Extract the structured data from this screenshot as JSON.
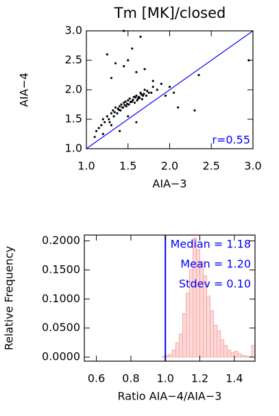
{
  "chart_data": [
    {
      "type": "scatter",
      "title": "Tm [MK]/closed",
      "x_label": "AIA−3",
      "y_label": "AIA−4",
      "annotation": "r=0.55",
      "annotation_color": "#0000ff",
      "identity_line": true,
      "identity_color": "#0000ff",
      "color": "#000000",
      "xlim": [
        1,
        3
      ],
      "ylim": [
        1,
        3
      ],
      "xticks": [
        {
          "value": 1,
          "label": "1.0"
        },
        1.5,
        {
          "value": 2,
          "label": "2.0"
        },
        2.5,
        {
          "value": 3,
          "label": "3.0"
        }
      ],
      "yticks": [
        {
          "value": 1,
          "label": "1.0"
        },
        1.5,
        {
          "value": 2,
          "label": "2.0"
        },
        2.5,
        {
          "value": 3,
          "label": "3.0"
        }
      ],
      "x": [
        1.2,
        1.25,
        1.3,
        1.32,
        1.35,
        1.38,
        1.4,
        1.42,
        1.45,
        1.47,
        1.5,
        1.52,
        1.55,
        1.57,
        1.6,
        1.62,
        1.65,
        1.68,
        1.7,
        1.75,
        1.8,
        1.85,
        1.28,
        1.33,
        1.37,
        1.41,
        1.44,
        1.48,
        1.51,
        1.54,
        1.58,
        1.61,
        1.64,
        1.67,
        1.72,
        1.78,
        1.15,
        1.18,
        1.22,
        1.27,
        1.34,
        1.39,
        1.43,
        1.46,
        1.49,
        1.53,
        1.56,
        1.59,
        1.63,
        1.66,
        1.69,
        1.73,
        1.9,
        1.95,
        2.0,
        2.05,
        1.1,
        1.12,
        1.3,
        1.45,
        1.5,
        1.6,
        1.25,
        1.35,
        1.55,
        1.7,
        2.1,
        2.3,
        2.35,
        2.95,
        1.4,
        1.6,
        1.2,
        1.3,
        1.5,
        1.8,
        1.65,
        1.45
      ],
      "values": [
        1.5,
        1.55,
        1.6,
        1.65,
        1.7,
        1.68,
        1.72,
        1.75,
        1.78,
        1.8,
        1.82,
        1.85,
        1.8,
        1.88,
        1.9,
        1.85,
        1.95,
        1.9,
        2.0,
        1.95,
        2.05,
        2.0,
        1.45,
        1.55,
        1.6,
        1.65,
        1.7,
        1.72,
        1.75,
        1.8,
        1.78,
        1.82,
        1.86,
        1.84,
        1.9,
        1.95,
        1.35,
        1.4,
        1.45,
        1.5,
        1.62,
        1.66,
        1.7,
        1.74,
        1.76,
        1.79,
        1.83,
        1.87,
        1.88,
        1.92,
        1.93,
        1.98,
        2.1,
        1.9,
        2.05,
        1.95,
        1.2,
        1.3,
        2.2,
        2.4,
        2.5,
        2.3,
        2.6,
        2.45,
        2.7,
        2.35,
        1.7,
        1.65,
        2.25,
        2.5,
        1.3,
        1.45,
        1.25,
        1.4,
        1.55,
        2.15,
        2.9,
        3.0
      ]
    },
    {
      "type": "histogram",
      "x_label": "Ratio AIA−4/AIA−3",
      "y_label": "Relative Frequency",
      "color": "#ffd8d8",
      "edge_color": "#f0a0a0",
      "annotations": [
        "Median = 1.18",
        "Mean = 1.20",
        "Stdev = 0.10"
      ],
      "annotation_color": "#0000ff",
      "vline": 1,
      "vline_color": "#0000ff",
      "xlim": [
        0.53,
        1.52
      ],
      "ylim": [
        -0.007,
        0.21
      ],
      "xticks": [
        0.6,
        0.8,
        {
          "value": 1,
          "label": "1.0"
        },
        1.2,
        1.4
      ],
      "yticks": [
        {
          "value": 0,
          "label": "0.0000"
        },
        {
          "value": 0.05,
          "label": "0.0500"
        },
        {
          "value": 0.1,
          "label": "0.1000"
        },
        {
          "value": 0.15,
          "label": "0.1500"
        },
        {
          "value": 0.2,
          "label": "0.2000"
        }
      ],
      "bins": [
        0.98,
        1.0,
        1.02,
        1.04,
        1.06,
        1.08,
        1.1,
        1.12,
        1.14,
        1.16,
        1.18,
        1.2,
        1.22,
        1.24,
        1.26,
        1.28,
        1.3,
        1.32,
        1.34,
        1.36,
        1.38,
        1.4,
        1.42,
        1.44,
        1.46,
        1.48,
        1.5,
        1.52
      ],
      "values": [
        0.001,
        0.003,
        0.005,
        0.012,
        0.025,
        0.04,
        0.075,
        0.11,
        0.15,
        0.205,
        0.185,
        0.165,
        0.14,
        0.105,
        0.08,
        0.055,
        0.045,
        0.03,
        0.02,
        0.012,
        0.008,
        0.01,
        0.006,
        0.003,
        0.002,
        0.001,
        0.02
      ]
    }
  ]
}
